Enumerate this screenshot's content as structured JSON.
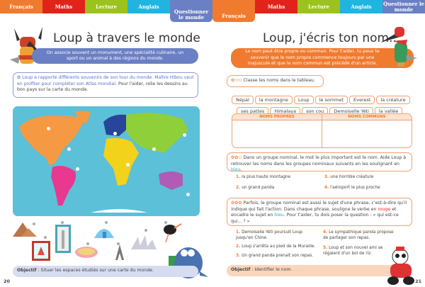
{
  "tabs_left": [
    {
      "label": "Français",
      "color": "#f07a2e"
    },
    {
      "label": "Maths",
      "color": "#e2231a"
    },
    {
      "label": "Lecture",
      "color": "#9bc31c"
    },
    {
      "label": "Anglais",
      "color": "#1fb5e0"
    },
    {
      "label": "Questionner le monde",
      "color": "#6a7fc4",
      "active": true
    }
  ],
  "tabs_right": [
    {
      "label": "Français",
      "color": "#f07a2e",
      "active": true
    },
    {
      "label": "Maths",
      "color": "#e2231a"
    },
    {
      "label": "Lecture",
      "color": "#9bc31c"
    },
    {
      "label": "Anglais",
      "color": "#1fb5e0"
    },
    {
      "label": "Questionner le monde",
      "color": "#6a7fc4"
    }
  ],
  "left": {
    "title": "Loup à travers le monde",
    "banner": "On associe souvent un monument, une spécialité culinaire, un sport ou un animal à des régions du monde.",
    "instruction_blue": "Loup a rapporté différents souvenirs de son tour du monde. Maître Hibou veut en profiter pour compléter son Atlas mondial.",
    "instruction_rest": " Pour l'aider, relie les dessins au bon pays sur la carte du monde.",
    "objectif_label": "Objectif",
    "objectif": " : Situer les espaces étudiés sur une carte du monde.",
    "page_number": "20",
    "souvenirs": [
      "pyramids",
      "pagoda-painting",
      "statue-of-liberty",
      "pizza",
      "igloo",
      "eiffel-tower",
      "sydney-opera",
      "ostrich"
    ]
  },
  "right": {
    "title": "Loup, j'écris ton nom...",
    "banner": "Le nom peut être propre ou commun. Pour t'aider, tu peux te souvenir que le nom propre commence toujours par une majuscule et que le nom commun est précédé d'un article.",
    "ex1": "Classe les noms dans le tableau.",
    "words_row1": [
      "Népal",
      "la montagne",
      "Loup",
      "le sommet",
      "Éverest",
      "la créature"
    ],
    "words_row2": [
      "ses pattes",
      "Himalaya",
      "son cou",
      "Demoiselle Yéti",
      "la vallée"
    ],
    "table_headers": [
      "NOMS PROPRES",
      "NOMS COMMUNS"
    ],
    "ex2_a": "Dans un groupe nominal, le mot le plus important est le nom. Aide Loup à retrouver les noms dans les groupes nominaux suivants en les soulignant en ",
    "ex2_blue": "bleu",
    "ex2_end": ".",
    "ex2_items": [
      {
        "n": "1.",
        "t": "la plus haute montagne"
      },
      {
        "n": "2.",
        "t": "un grand panda"
      },
      {
        "n": "3.",
        "t": "une horrible créature"
      },
      {
        "n": "4.",
        "t": "l'aéroport le plus proche"
      }
    ],
    "ex3_a": "Parfois, le groupe nominal est aussi le sujet d'une phrase, c'est-à-dire qu'il indique qui fait l'action. Dans chaque phrase, souligne le verbe en ",
    "ex3_red": "rouge",
    "ex3_b": " et encadre le sujet en ",
    "ex3_blue": "bleu",
    "ex3_c": ". Pour t'aider, tu dois poser la question : « qui est-ce qui... ? »",
    "ex3_items": [
      {
        "n": "1.",
        "t": "Demoiselle Yéti poursuit Loup jusqu'en Chine."
      },
      {
        "n": "2.",
        "t": "Loup s'arrêta au pied de la Muraille."
      },
      {
        "n": "3.",
        "t": "Un grand panda prenait son repas."
      },
      {
        "n": "4.",
        "t": "Le sympathique panda propose de partager son repas."
      },
      {
        "n": "5.",
        "t": "Loup et son nouvel ami se régalent d'un bol de riz."
      }
    ],
    "objectif_label": "Objectif",
    "objectif": " : Identifier le nom.",
    "page_number": "21"
  }
}
